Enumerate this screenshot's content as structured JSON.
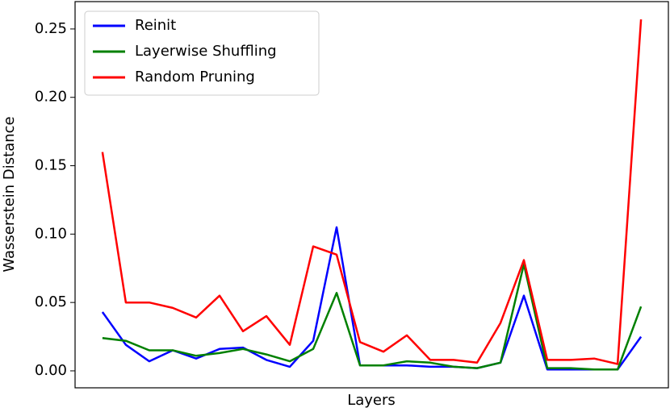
{
  "chart_data": {
    "type": "line",
    "x_label": "Layers",
    "y_label": "Wasserstein Distance",
    "categories": [
      null,
      null,
      null,
      null,
      null,
      null,
      null,
      null,
      null,
      null,
      null,
      null,
      null,
      null,
      null,
      null,
      null,
      null,
      null,
      null,
      null,
      null,
      null,
      null
    ],
    "series": [
      {
        "name": "Reinit",
        "color": "#0000ff",
        "values": [
          0.043,
          0.019,
          0.007,
          0.015,
          0.009,
          0.016,
          0.017,
          0.008,
          0.003,
          0.022,
          0.105,
          0.004,
          0.004,
          0.004,
          0.003,
          0.003,
          0.002,
          0.006,
          0.055,
          0.001,
          0.001,
          0.001,
          0.001,
          0.025
        ]
      },
      {
        "name": "Layerwise Shuffling",
        "color": "#008000",
        "values": [
          0.024,
          0.022,
          0.015,
          0.015,
          0.011,
          0.013,
          0.016,
          0.012,
          0.007,
          0.016,
          0.057,
          0.004,
          0.004,
          0.007,
          0.006,
          0.003,
          0.002,
          0.006,
          0.078,
          0.002,
          0.002,
          0.001,
          0.001,
          0.047
        ]
      },
      {
        "name": "Random Pruning",
        "color": "#ff0000",
        "values": [
          0.16,
          0.05,
          0.05,
          0.046,
          0.039,
          0.055,
          0.029,
          0.04,
          0.019,
          0.091,
          0.085,
          0.021,
          0.014,
          0.026,
          0.008,
          0.008,
          0.006,
          0.035,
          0.081,
          0.008,
          0.008,
          0.009,
          0.005,
          0.257
        ]
      }
    ],
    "ylim": [
      -0.0124,
      0.27
    ],
    "yticks": [
      {
        "value": 0,
        "label": "0.00"
      },
      {
        "value": 0.05,
        "label": "0.05"
      },
      {
        "value": 0.1,
        "label": "0.10"
      },
      {
        "value": 0.15,
        "label": "0.15"
      },
      {
        "value": 0.2,
        "label": "0.20"
      },
      {
        "value": 0.25,
        "label": "0.25"
      }
    ],
    "legend": "upper left",
    "grid": false
  }
}
